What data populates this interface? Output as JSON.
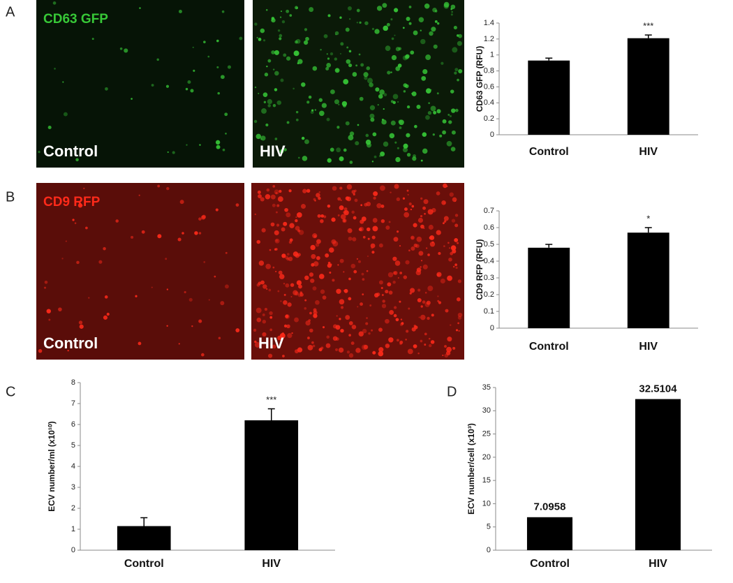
{
  "images": [
    {
      "panel": "A",
      "stain": "CD63 GFP",
      "captions": [
        "Control",
        "HIV"
      ],
      "color": "#37c837"
    },
    {
      "panel": "B",
      "stain": "CD9 RFP",
      "captions": [
        "Control",
        "HIV"
      ],
      "color": "#ff2a1a"
    }
  ],
  "chart_data": [
    {
      "type": "bar",
      "y_label": "CD63 GFP (RFU)",
      "categories": [
        "Control",
        "HIV"
      ],
      "values": [
        0.93,
        1.21
      ],
      "errors": [
        0.03,
        0.04
      ],
      "significance_labels": [
        null,
        "***"
      ],
      "color": "#000000",
      "ylim": [
        0,
        1.4
      ],
      "yticks": [
        0,
        0.2,
        0.4,
        0.6,
        0.8,
        1,
        1.2,
        1.4
      ]
    },
    {
      "type": "bar",
      "y_label": "CD9 RFP (RFU)",
      "categories": [
        "Control",
        "HIV"
      ],
      "values": [
        0.48,
        0.57
      ],
      "errors": [
        0.02,
        0.03
      ],
      "significance_labels": [
        null,
        "*"
      ],
      "color": "#000000",
      "ylim": [
        0,
        0.7
      ],
      "yticks": [
        0,
        0.1,
        0.2,
        0.3,
        0.4,
        0.5,
        0.6,
        0.7
      ]
    },
    {
      "type": "bar",
      "panel": "C",
      "y_label": "ECV number/ml (x10¹⁰)",
      "categories": [
        "Control",
        "HIV"
      ],
      "values": [
        1.15,
        6.2
      ],
      "errors": [
        0.4,
        0.55
      ],
      "significance_labels": [
        null,
        "***"
      ],
      "color": "#000000",
      "ylim": [
        0,
        8
      ],
      "yticks": [
        0,
        1,
        2,
        3,
        4,
        5,
        6,
        7,
        8
      ]
    },
    {
      "type": "bar",
      "panel": "D",
      "y_label": "ECV number/cell (x10³)",
      "categories": [
        "Control",
        "HIV"
      ],
      "values": [
        7.0958,
        32.5104
      ],
      "value_labels": [
        "7.0958",
        "32.5104"
      ],
      "color": "#000000",
      "ylim": [
        0,
        35
      ],
      "yticks": [
        0,
        5,
        10,
        15,
        20,
        25,
        30,
        35
      ]
    }
  ]
}
